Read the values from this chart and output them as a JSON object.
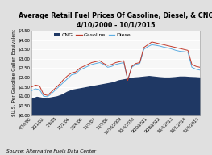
{
  "title": "Average Retail Fuel Prices Of Gasoline, Diesel, & CNG",
  "subtitle": "4/10/2000 - 10/1/2015",
  "ylabel": "$U.S. Per Gasoline Gallon Equivalent",
  "source": "Source: Alternative Fuels Data Center",
  "ylim": [
    0.0,
    4.5
  ],
  "yticks": [
    0.0,
    0.5,
    1.0,
    1.5,
    2.0,
    2.5,
    3.0,
    3.5,
    4.0,
    4.5
  ],
  "ytick_labels": [
    "$0.00",
    "$0.50",
    "$1.00",
    "$1.50",
    "$2.00",
    "$2.50",
    "$3.00",
    "$3.50",
    "$4.00",
    "$4.50"
  ],
  "xtick_labels": [
    "4/10/00",
    "2/11/02",
    "2/3/03",
    "11/1/04",
    "5/24/06",
    "10/2/07",
    "10/2/08",
    "10/16/2009",
    "10/4/2010",
    "9/30/2011",
    "9/28/2012",
    "10/4/2013",
    "10/1/2014",
    "10/1/2015"
  ],
  "cng_color": "#1f3864",
  "gasoline_color": "#c0392b",
  "diesel_color": "#5dade2",
  "plot_bg": "#f7f7f7",
  "fig_bg": "#e0e0e0",
  "grid_color": "#ffffff",
  "title_fontsize": 5.8,
  "subtitle_fontsize": 5.5,
  "ylabel_fontsize": 4.2,
  "tick_fontsize": 3.8,
  "legend_fontsize": 4.5,
  "source_fontsize": 4.2,
  "cng_values": [
    0.87,
    0.97,
    0.92,
    0.9,
    0.95,
    1.0,
    1.1,
    1.25,
    1.35,
    1.4,
    1.45,
    1.5,
    1.55,
    1.6,
    1.65,
    1.7,
    1.75,
    1.85,
    1.9,
    1.95,
    2.0,
    2.02,
    2.05,
    2.08,
    2.05,
    2.02,
    2.0,
    2.0,
    2.02,
    2.05,
    2.05,
    2.03,
    2.02,
    2.0
  ],
  "gasoline_values": [
    1.5,
    1.6,
    1.55,
    1.1,
    1.05,
    1.25,
    1.45,
    1.65,
    1.9,
    2.1,
    2.25,
    2.3,
    2.5,
    2.6,
    2.7,
    2.8,
    2.85,
    2.9,
    2.75,
    2.65,
    2.7,
    2.8,
    2.85,
    2.9,
    1.85,
    2.6,
    2.75,
    2.8,
    3.6,
    3.75,
    3.9,
    3.85,
    3.8,
    3.75,
    3.7,
    3.65,
    3.6,
    3.55,
    3.5,
    3.45,
    2.7,
    2.6,
    2.55
  ],
  "diesel_values": [
    1.3,
    1.4,
    1.35,
    1.0,
    0.98,
    1.15,
    1.35,
    1.55,
    1.75,
    1.95,
    2.15,
    2.2,
    2.4,
    2.5,
    2.6,
    2.7,
    2.75,
    2.8,
    2.7,
    2.55,
    2.6,
    2.7,
    2.75,
    2.8,
    1.9,
    2.55,
    2.7,
    2.75,
    3.5,
    3.65,
    3.75,
    3.72,
    3.68,
    3.62,
    3.58,
    3.52,
    3.45,
    3.4,
    3.38,
    3.35,
    2.55,
    2.45,
    2.4
  ],
  "n_cng": 34,
  "n_gas": 43,
  "n_die": 43
}
